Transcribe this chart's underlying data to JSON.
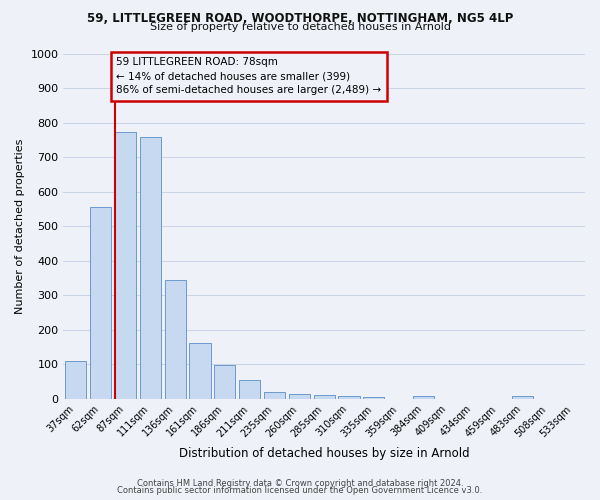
{
  "title1": "59, LITTLEGREEN ROAD, WOODTHORPE, NOTTINGHAM, NG5 4LP",
  "title2": "Size of property relative to detached houses in Arnold",
  "xlabel": "Distribution of detached houses by size in Arnold",
  "ylabel": "Number of detached properties",
  "categories": [
    "37sqm",
    "62sqm",
    "87sqm",
    "111sqm",
    "136sqm",
    "161sqm",
    "186sqm",
    "211sqm",
    "235sqm",
    "260sqm",
    "285sqm",
    "310sqm",
    "335sqm",
    "359sqm",
    "384sqm",
    "409sqm",
    "434sqm",
    "459sqm",
    "483sqm",
    "508sqm",
    "533sqm"
  ],
  "values": [
    110,
    555,
    775,
    760,
    345,
    163,
    97,
    55,
    20,
    13,
    10,
    8,
    5,
    0,
    8,
    0,
    0,
    0,
    8,
    0,
    0
  ],
  "bar_color": "#c6d9f0",
  "bar_edge_color": "#5b8dc8",
  "grid_color": "#c8d4e8",
  "property_line_color": "#cc0000",
  "annotation_text": "59 LITTLEGREEN ROAD: 78sqm\n← 14% of detached houses are smaller (399)\n86% of semi-detached houses are larger (2,489) →",
  "annotation_box_color": "#cc0000",
  "annotation_text_color": "#000000",
  "ylim": [
    0,
    1000
  ],
  "yticks": [
    0,
    100,
    200,
    300,
    400,
    500,
    600,
    700,
    800,
    900,
    1000
  ],
  "footer1": "Contains HM Land Registry data © Crown copyright and database right 2024.",
  "footer2": "Contains public sector information licensed under the Open Government Licence v3.0.",
  "bg_color": "#eef2f8"
}
